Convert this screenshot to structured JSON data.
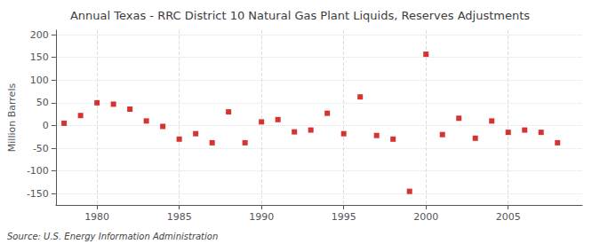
{
  "chart_data": {
    "type": "scatter",
    "title": "Annual Texas - RRC District 10 Natural Gas Plant Liquids, Reserves Adjustments",
    "ylabel": "Million Barrels",
    "annotation": "Source: U.S. Energy Information Administration",
    "x": [
      1978,
      1979,
      1980,
      1981,
      1982,
      1983,
      1984,
      1985,
      1986,
      1987,
      1988,
      1989,
      1990,
      1991,
      1992,
      1993,
      1994,
      1995,
      1996,
      1997,
      1998,
      1999,
      2000,
      2001,
      2002,
      2003,
      2004,
      2005,
      2006,
      2007,
      2008
    ],
    "values": [
      5,
      22,
      50,
      47,
      36,
      10,
      -2,
      -30,
      -18,
      -38,
      30,
      -38,
      8,
      13,
      -14,
      -10,
      27,
      -18,
      63,
      -22,
      -30,
      -145,
      157,
      -20,
      16,
      -28,
      10,
      -15,
      -10,
      -15,
      -38
    ],
    "color": "#cc0000",
    "marker": "square",
    "xlim": [
      1977.5,
      2009.5
    ],
    "xticks": [
      1980,
      1985,
      1990,
      1995,
      2000,
      2005
    ],
    "ylim": [
      -175,
      210
    ],
    "yticks": [
      -150,
      -100,
      -50,
      0,
      50,
      100,
      150,
      200
    ],
    "grid": true
  }
}
